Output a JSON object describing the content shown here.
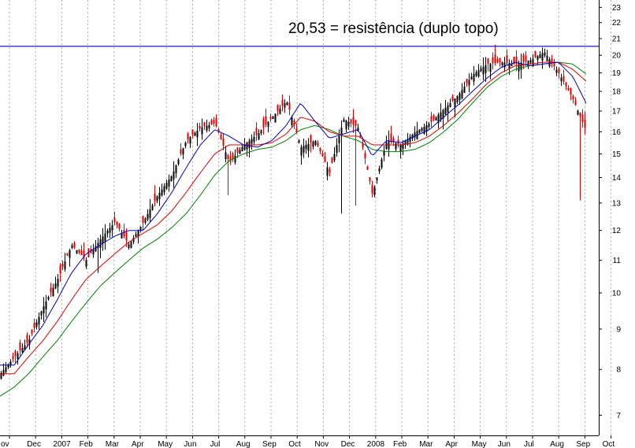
{
  "chart_data": {
    "type": "candlestick",
    "annotation": "20,53 = resistência (duplo topo)",
    "resistance_level": 20.53,
    "y_scale": "log",
    "ylim": [
      6.6,
      23.5
    ],
    "y_ticks": [
      7,
      8,
      9,
      10,
      11,
      12,
      13,
      14,
      15,
      16,
      17,
      18,
      19,
      20,
      21,
      22,
      23
    ],
    "x_ticks": [
      "ov",
      "Dec",
      "2007",
      "Feb",
      "Mar",
      "Apr",
      "May",
      "Jun",
      "Jul",
      "Aug",
      "Sep",
      "Oct",
      "Nov",
      "Dec",
      "2008",
      "Feb",
      "Mar",
      "Apr",
      "May",
      "Jun",
      "Jul",
      "Aug",
      "Sep",
      "Oct"
    ],
    "grid": "vertical dotted",
    "colors": {
      "up_candle": "#000000",
      "down_candle": "#e00000",
      "ma_short": "#0000cc",
      "ma_mid": "#e00000",
      "ma_long": "#008000",
      "resistance_line": "#0000cc",
      "grid": "#aaaaaa"
    },
    "series": [
      {
        "key": "price_close",
        "values": [
          7.9,
          8.3,
          8.7,
          9.6,
          10.4,
          11.5,
          11.0,
          11.7,
          12.3,
          11.5,
          12.3,
          13.3,
          14.1,
          15.6,
          16.2,
          16.4,
          14.6,
          15.4,
          15.9,
          16.7,
          17.5,
          15.3,
          15.6,
          14.2,
          16.6,
          16.2,
          13.3,
          15.6,
          15.4,
          16.0,
          16.4,
          17.1,
          17.8,
          18.9,
          19.5,
          19.6,
          19.5,
          19.7,
          20.2,
          19.0,
          17.6,
          15.9
        ]
      },
      {
        "key": "ma_short",
        "values": [
          8.1,
          8.1,
          8.6,
          9.1,
          9.8,
          10.6,
          11.2,
          11.5,
          11.8,
          12.0,
          12.0,
          12.6,
          13.4,
          14.4,
          15.4,
          16.1,
          15.8,
          15.4,
          15.3,
          15.6,
          16.3,
          17.4,
          16.5,
          15.7,
          15.9,
          16.1,
          14.9,
          15.6,
          15.5,
          15.8,
          16.1,
          16.7,
          17.3,
          18.0,
          18.7,
          19.3,
          19.6,
          19.4,
          19.5,
          19.6,
          18.8,
          17.3
        ]
      },
      {
        "key": "ma_mid",
        "values": [
          7.9,
          7.9,
          8.3,
          8.7,
          9.2,
          9.8,
          10.4,
          10.8,
          11.2,
          11.6,
          11.9,
          12.2,
          12.7,
          13.4,
          14.2,
          15.0,
          15.4,
          15.4,
          15.4,
          15.5,
          15.9,
          16.7,
          16.5,
          16.0,
          15.8,
          15.8,
          15.4,
          15.4,
          15.4,
          15.5,
          15.8,
          16.3,
          16.9,
          17.6,
          18.4,
          19.0,
          19.4,
          19.5,
          19.6,
          19.6,
          19.2,
          18.5
        ]
      },
      {
        "key": "ma_long",
        "values": [
          7.4,
          7.6,
          7.9,
          8.3,
          8.7,
          9.2,
          9.7,
          10.2,
          10.6,
          11.0,
          11.4,
          11.7,
          12.1,
          12.6,
          13.3,
          14.1,
          14.7,
          15.0,
          15.2,
          15.3,
          15.6,
          16.1,
          16.3,
          16.1,
          15.8,
          15.6,
          15.2,
          15.1,
          15.1,
          15.2,
          15.5,
          16.0,
          16.6,
          17.4,
          18.2,
          18.8,
          19.2,
          19.4,
          19.5,
          19.6,
          19.5,
          18.9
        ]
      }
    ]
  }
}
